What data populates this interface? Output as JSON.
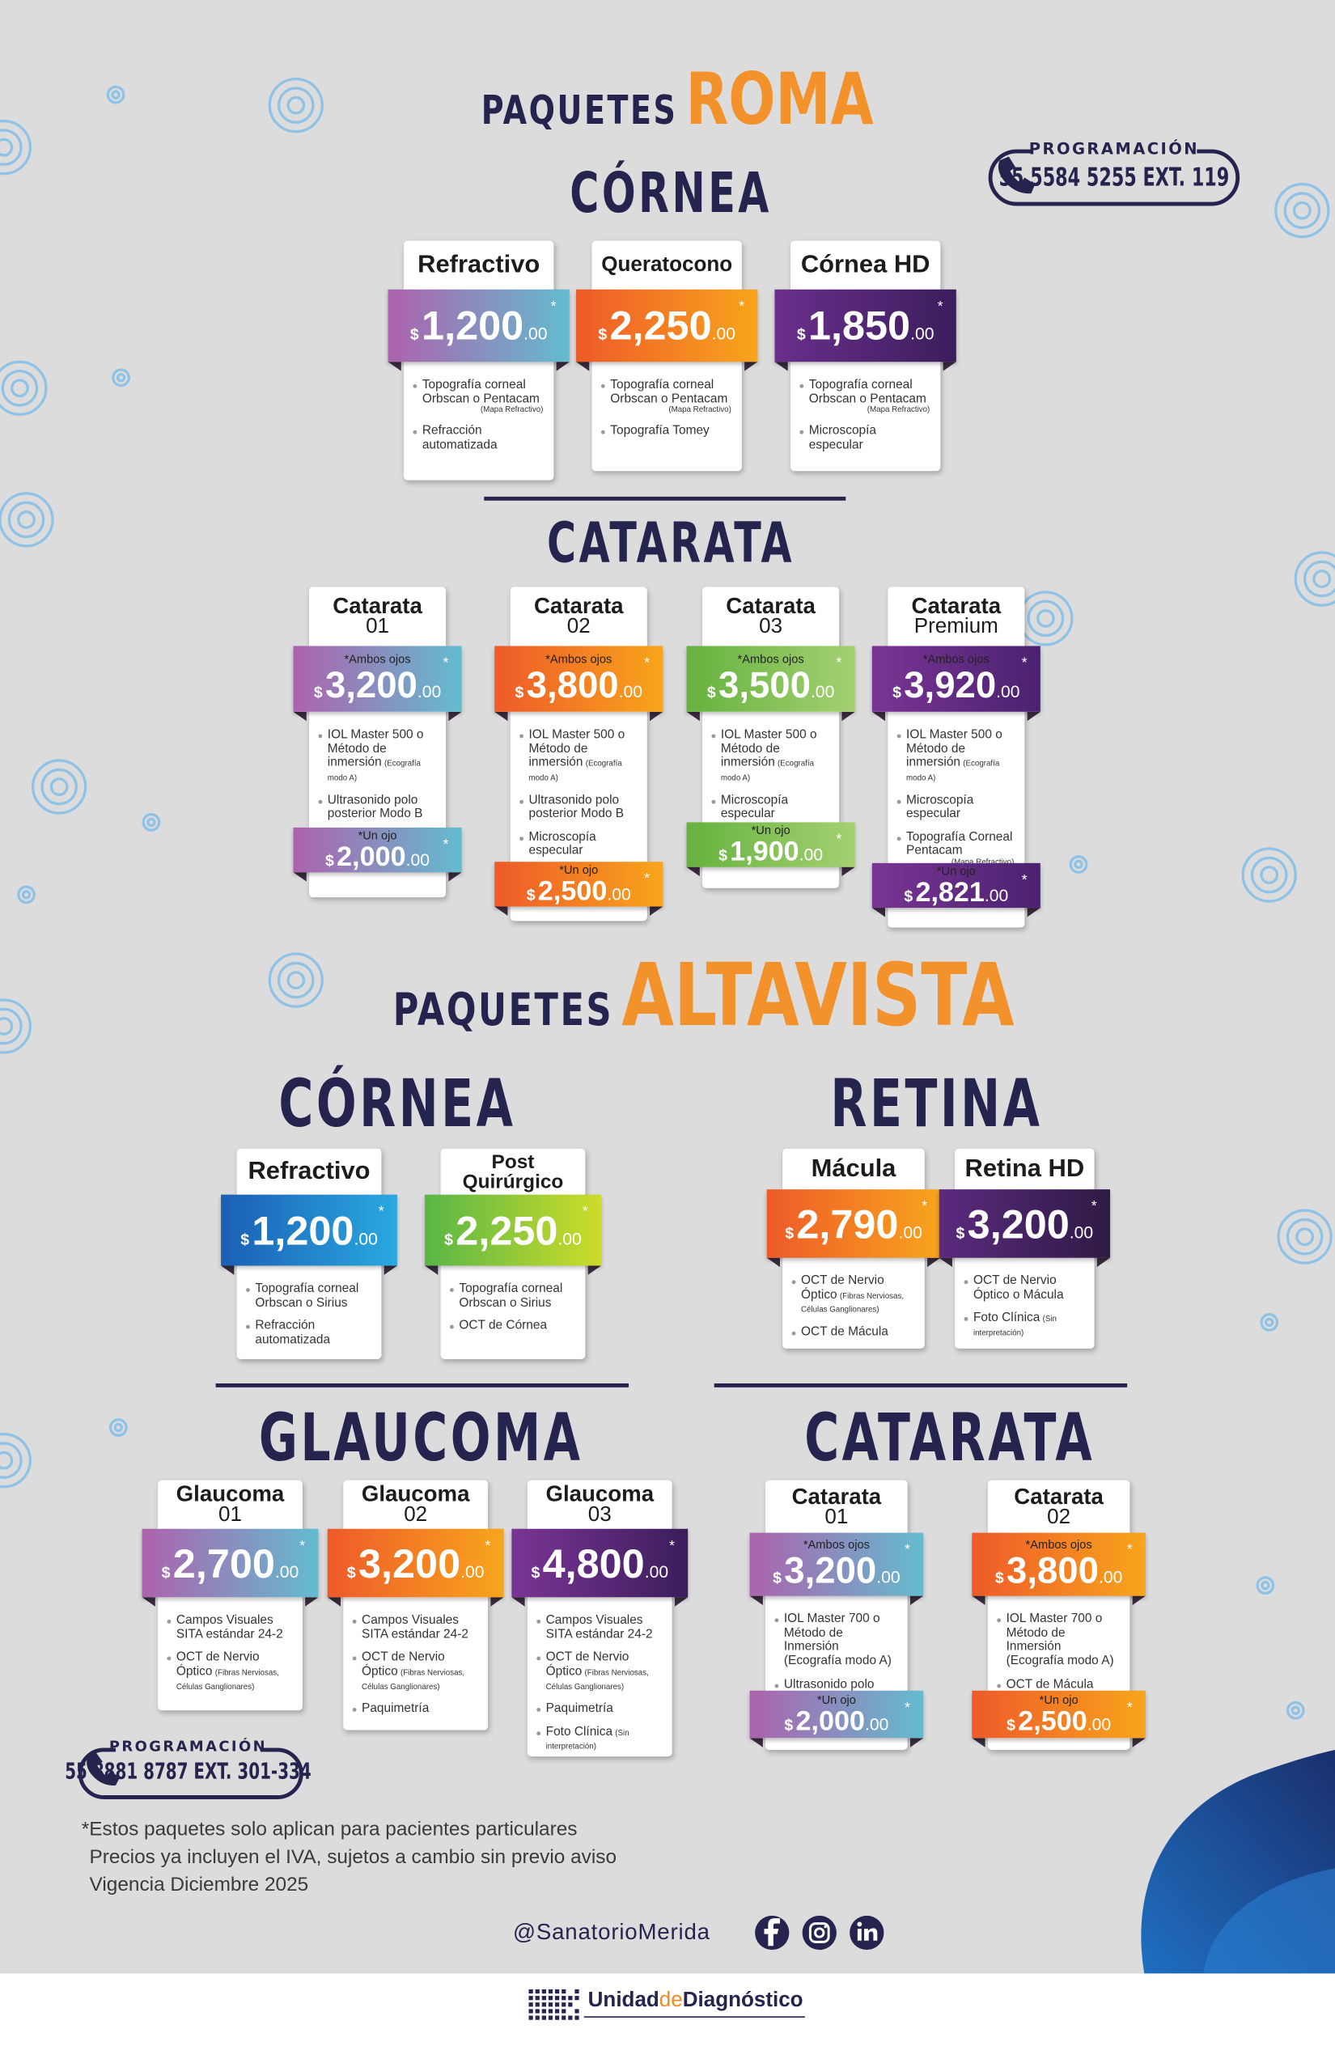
{
  "price_format": {
    "currency": "$",
    "cents": ".00",
    "mark": "*"
  },
  "roma": {
    "label": "PAQUETES",
    "name": "ROMA",
    "phone": {
      "label": "PROGRAMACIÓN",
      "number": "55 5584 5255 EXT. 119"
    },
    "cornea": {
      "title": "CÓRNEA",
      "packages": [
        {
          "name": "Refractivo",
          "price": "1,200",
          "colors": [
            "#ad62ad",
            "#63bccf"
          ],
          "items": [
            {
              "text": "Topografía corneal Orbscan o Pentacam",
              "note": "(Mapa Refractivo)"
            },
            {
              "text": "Refracción automatizada"
            }
          ]
        },
        {
          "name": "Queratocono",
          "price": "2,250",
          "colors": [
            "#ee5a29",
            "#f8a51c"
          ],
          "items": [
            {
              "text": "Topografía corneal Orbscan o Pentacam",
              "note": "(Mapa Refractivo)"
            },
            {
              "text": "Topografía Tomey"
            }
          ]
        },
        {
          "name": "Córnea HD",
          "price": "1,850",
          "colors": [
            "#6a2f8c",
            "#3b1d5c"
          ],
          "items": [
            {
              "text": "Topografía corneal Orbscan o Pentacam",
              "note": "(Mapa Refractivo)"
            },
            {
              "text": "Microscopía especular"
            }
          ]
        }
      ]
    },
    "cataract": {
      "title": "CATARATA",
      "packages": [
        {
          "name": "Catarata",
          "sub": "01",
          "note": "*Ambos ojos",
          "price": "3,200",
          "colors": [
            "#ad62ad",
            "#63bccf"
          ],
          "items": [
            {
              "text": "IOL Master 500 o Método de inmersión",
              "note": "(Ecografía modo A)"
            },
            {
              "text": "Ultrasonido polo posterior Modo B"
            }
          ],
          "single": {
            "note": "*Un ojo",
            "price": "2,000"
          }
        },
        {
          "name": "Catarata",
          "sub": "02",
          "note": "*Ambos ojos",
          "price": "3,800",
          "colors": [
            "#ee5a29",
            "#f8a51c"
          ],
          "items": [
            {
              "text": "IOL Master 500 o Método de inmersión",
              "note": "(Ecografía modo A)"
            },
            {
              "text": "Ultrasonido polo posterior Modo B"
            },
            {
              "text": "Microscopía especular"
            }
          ],
          "single": {
            "note": "*Un ojo",
            "price": "2,500"
          }
        },
        {
          "name": "Catarata",
          "sub": "03",
          "note": "*Ambos ojos",
          "price": "3,500",
          "colors": [
            "#65b23f",
            "#a5d072"
          ],
          "items": [
            {
              "text": "IOL Master 500 o Método de inmersión",
              "note": "(Ecografía modo A)"
            },
            {
              "text": "Microscopía especular"
            }
          ],
          "single": {
            "note": "*Un ojo",
            "price": "1,900"
          }
        },
        {
          "name": "Catarata",
          "sub": "Premium",
          "note": "*Ambos ojos",
          "price": "3,920",
          "colors": [
            "#7a3594",
            "#4a2270"
          ],
          "items": [
            {
              "text": "IOL Master 500 o Método de inmersión",
              "note": "(Ecografía modo A)"
            },
            {
              "text": "Microscopía especular"
            },
            {
              "text": "Topografía Corneal Pentacam",
              "note": "(Mapa Refractivo)"
            }
          ],
          "single": {
            "note": "*Un ojo",
            "price": "2,821"
          }
        }
      ]
    }
  },
  "altavista": {
    "label": "PAQUETES",
    "name": "ALTAVISTA",
    "phone": {
      "label": "PROGRAMACIÓN",
      "number": "55 8881 8787 EXT. 301-334"
    },
    "cornea": {
      "title": "CÓRNEA",
      "packages": [
        {
          "name": "Refractivo",
          "price": "1,200",
          "colors": [
            "#1a5fb4",
            "#2aa9e0"
          ],
          "items": [
            {
              "text": "Topografía corneal Orbscan o Sirius"
            },
            {
              "text": "Refracción automatizada"
            }
          ]
        },
        {
          "name": "Post Quirúrgico",
          "price": "2,250",
          "colors": [
            "#58b646",
            "#cddc29"
          ],
          "items": [
            {
              "text": "Topografía corneal Orbscan o Sirius"
            },
            {
              "text": "OCT de Córnea"
            }
          ]
        }
      ]
    },
    "retina": {
      "title": "RETINA",
      "packages": [
        {
          "name": "Mácula",
          "price": "2,790",
          "colors": [
            "#ee5a29",
            "#f8a51c"
          ],
          "items": [
            {
              "text": "OCT de Nervio Óptico",
              "note": "(Fibras Nerviosas, Células Ganglionares)"
            },
            {
              "text": "OCT de Mácula"
            }
          ]
        },
        {
          "name": "Retina HD",
          "price": "3,200",
          "colors": [
            "#5a2a7e",
            "#2f1a45"
          ],
          "items": [
            {
              "text": "OCT de Nervio Óptico o Mácula"
            },
            {
              "text": "Foto Clínica",
              "note": "(Sin interpretación)"
            }
          ]
        }
      ]
    },
    "glaucoma": {
      "title": "GLAUCOMA",
      "packages": [
        {
          "name": "Glaucoma",
          "sub": "01",
          "price": "2,700",
          "colors": [
            "#ad62ad",
            "#63bccf"
          ],
          "items": [
            {
              "text": "Campos Visuales SITA estándar 24-2"
            },
            {
              "text": "OCT de Nervio Óptico",
              "note": "(Fibras Nerviosas, Células Ganglionares)"
            }
          ]
        },
        {
          "name": "Glaucoma",
          "sub": "02",
          "price": "3,200",
          "colors": [
            "#ee5a29",
            "#f8a51c"
          ],
          "items": [
            {
              "text": "Campos Visuales SITA estándar 24-2"
            },
            {
              "text": "OCT de Nervio Óptico",
              "note": "(Fibras Nerviosas, Células Ganglionares)"
            },
            {
              "text": "Paquimetría"
            }
          ]
        },
        {
          "name": "Glaucoma",
          "sub": "03",
          "price": "4,800",
          "colors": [
            "#7a3594",
            "#3b1d5c"
          ],
          "items": [
            {
              "text": "Campos Visuales SITA estándar 24-2"
            },
            {
              "text": "OCT de Nervio Óptico",
              "note": "(Fibras Nerviosas, Células Ganglionares)"
            },
            {
              "text": "Paquimetría"
            },
            {
              "text": "Foto Clínica",
              "note": "(Sin interpretación)"
            }
          ]
        }
      ]
    },
    "cataract": {
      "title": "CATARATA",
      "packages": [
        {
          "name": "Catarata",
          "sub": "01",
          "note": "*Ambos ojos",
          "price": "3,200",
          "colors": [
            "#ad62ad",
            "#63bccf"
          ],
          "items": [
            {
              "text": "IOL Master 700 o Método de Inmersión (Ecografía modo A)"
            },
            {
              "text": "Ultrasonido polo posterior Modo B"
            }
          ],
          "single": {
            "note": "*Un ojo",
            "price": "2,000"
          }
        },
        {
          "name": "Catarata",
          "sub": "02",
          "note": "*Ambos ojos",
          "price": "3,800",
          "colors": [
            "#ee5a29",
            "#f8a51c"
          ],
          "items": [
            {
              "text": "IOL Master 700 o Método de Inmersión (Ecografía modo A)"
            },
            {
              "text": "OCT de Mácula"
            }
          ],
          "single": {
            "note": "*Un ojo",
            "price": "2,500"
          }
        }
      ]
    }
  },
  "footnotes": [
    "*Estos paquetes solo aplican para pacientes particulares",
    "Precios ya incluyen el IVA, sujetos a cambio sin previo aviso",
    "Vigencia Diciembre 2025"
  ],
  "social": "@SanatorioMerida",
  "logo": [
    "Unidad",
    "de",
    "Diagnóstico"
  ]
}
